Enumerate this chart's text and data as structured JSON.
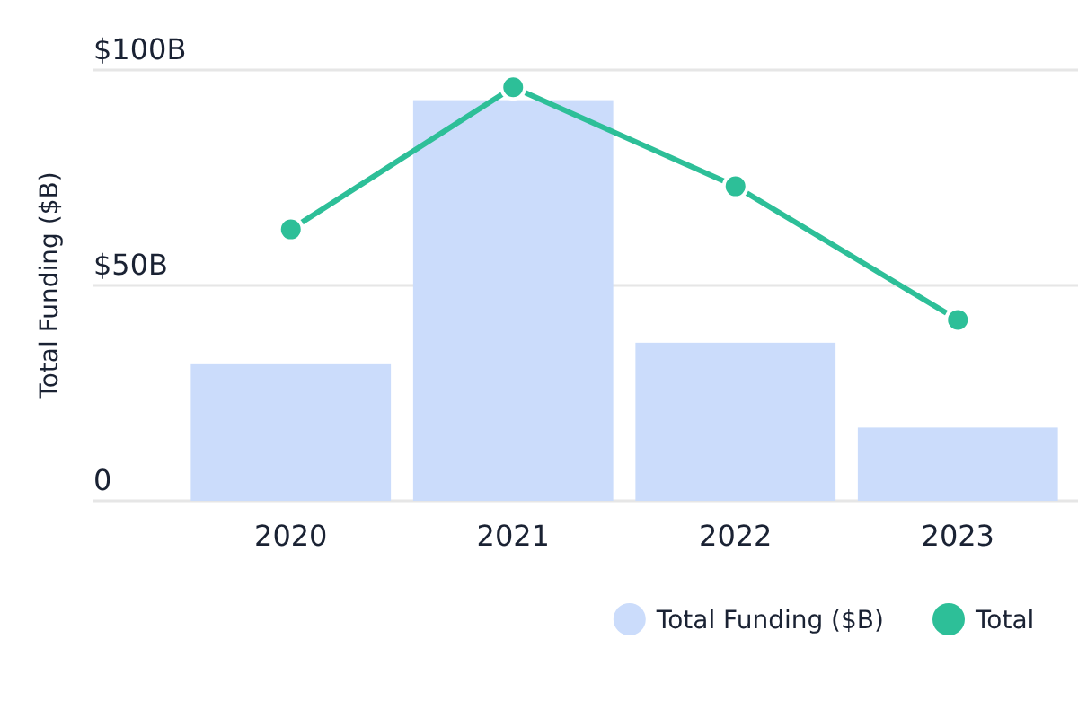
{
  "chart_data": {
    "type": "bar",
    "ylabel": "Total Funding ($B)",
    "categories": [
      "2020",
      "2021",
      "2022",
      "2023"
    ],
    "series": [
      {
        "name": "Total Funding ($B)",
        "color": "#cbdcfb",
        "values": [
          31.7,
          93,
          36.7,
          17
        ]
      },
      {
        "name": "Total",
        "type": "line",
        "color": "#2dbf98",
        "values": [
          63,
          96,
          73,
          42
        ]
      }
    ],
    "ylim": [
      0,
      100
    ],
    "yticks": [
      {
        "value": 0,
        "label": "0"
      },
      {
        "value": 50,
        "label": "$50B"
      },
      {
        "value": 100,
        "label": "$100B"
      }
    ],
    "grid": "y",
    "legend": "bottom right",
    "marker": "circle"
  }
}
